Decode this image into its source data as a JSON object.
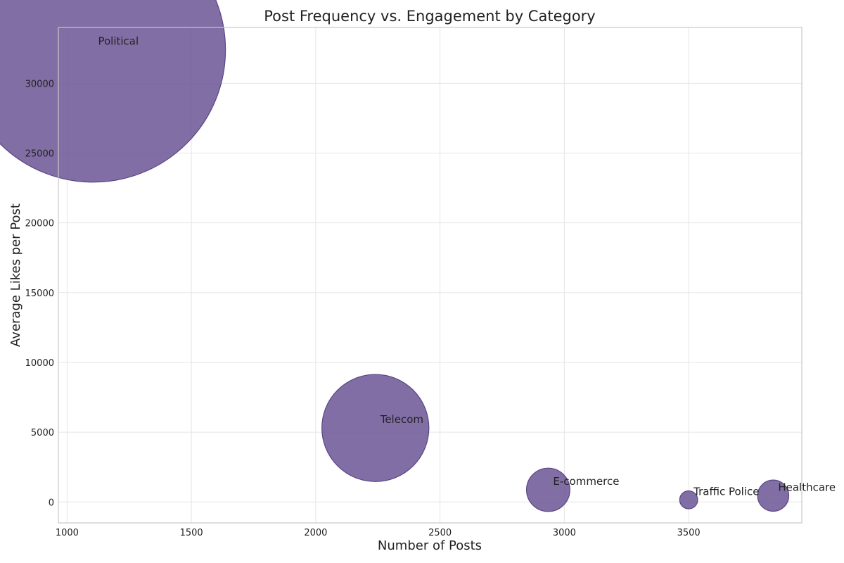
{
  "chart_data": {
    "type": "scatter",
    "title": "Post Frequency vs. Engagement by Category",
    "xlabel": "Number of Posts",
    "ylabel": "Average Likes per Post",
    "xlim": [
      965,
      3955
    ],
    "ylim": [
      -1500,
      34000
    ],
    "xticks": [
      1000,
      1500,
      2000,
      2500,
      3000,
      3500
    ],
    "yticks": [
      0,
      5000,
      10000,
      15000,
      20000,
      25000,
      30000
    ],
    "grid": true,
    "colors": {
      "fill": "#6b5595",
      "stroke": "#5a4785"
    },
    "points": [
      {
        "label": "Political",
        "x": 1105,
        "y": 32400,
        "size": 32400
      },
      {
        "label": "Telecom",
        "x": 2240,
        "y": 5300,
        "size": 5300
      },
      {
        "label": "E-commerce",
        "x": 2935,
        "y": 870,
        "size": 870
      },
      {
        "label": "Traffic Police",
        "x": 3500,
        "y": 150,
        "size": 150
      },
      {
        "label": "Healthcare",
        "x": 3840,
        "y": 450,
        "size": 450
      }
    ]
  }
}
